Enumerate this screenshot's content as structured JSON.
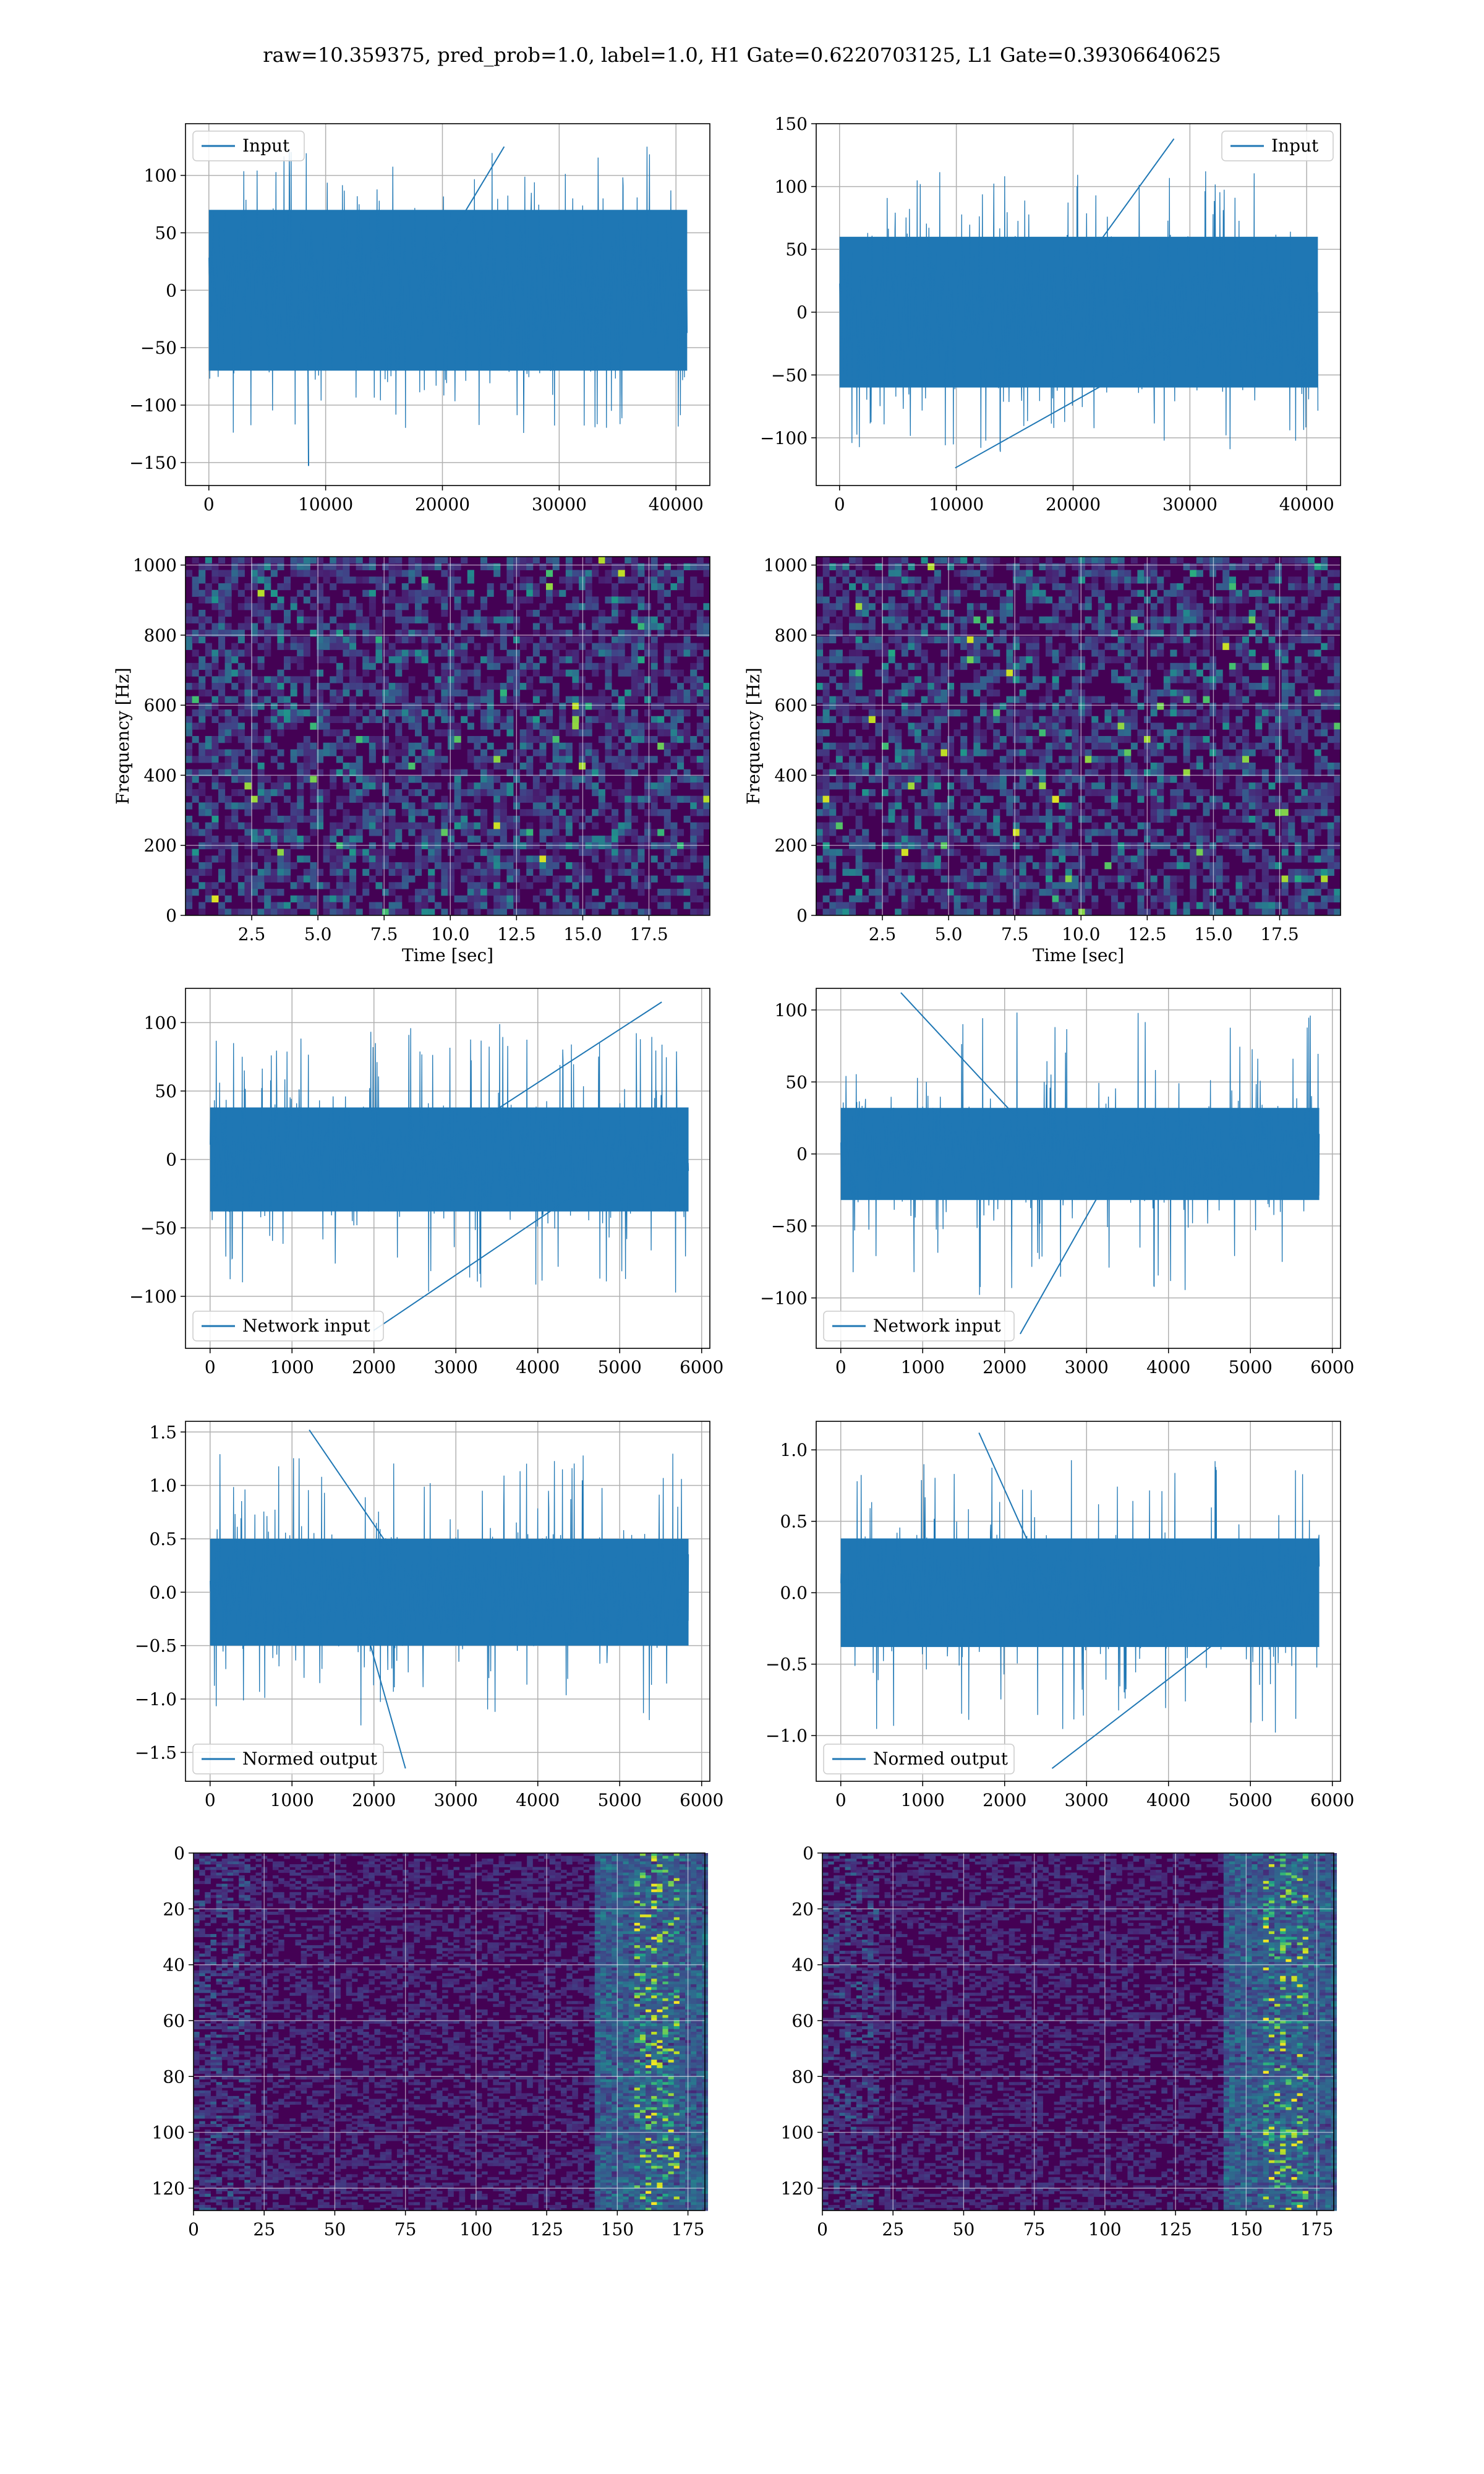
{
  "figure": {
    "suptitle": "raw=10.359375, pred_prob=1.0, label=1.0, H1 Gate=0.6220703125, L1 Gate=0.39306640625"
  },
  "colors": {
    "line": "#1f77b4",
    "grid": "#b0b0b0",
    "viridis_low": "#440154",
    "viridis_mid": "#21918c",
    "viridis_high": "#fde725"
  },
  "chart_data": [
    {
      "id": "input-h1",
      "type": "line",
      "legend": "Input",
      "legend_loc": "upper-left",
      "xlim": [
        -2000,
        42900
      ],
      "ylim": [
        -170,
        145
      ],
      "xticks": [
        0,
        10000,
        20000,
        30000,
        40000
      ],
      "yticks": [
        -150,
        -100,
        -50,
        0,
        50,
        100
      ],
      "series": {
        "x_range": [
          0,
          40960
        ],
        "core_amplitude": 70,
        "peak_max": 125,
        "peak_min": -153
      }
    },
    {
      "id": "input-l1",
      "type": "line",
      "legend": "Input",
      "legend_loc": "upper-right",
      "xlim": [
        -2000,
        42900
      ],
      "ylim": [
        -138,
        150
      ],
      "xticks": [
        0,
        10000,
        20000,
        30000,
        40000
      ],
      "yticks": [
        -100,
        -50,
        0,
        50,
        100,
        150
      ],
      "series": {
        "x_range": [
          0,
          40960
        ],
        "core_amplitude": 60,
        "peak_max": 138,
        "peak_min": -124
      }
    },
    {
      "id": "spectrogram-h1",
      "type": "heatmap",
      "ylabel": "Frequency [Hz]",
      "xlabel": "Time [sec]",
      "xlim": [
        0,
        19.8
      ],
      "ylim": [
        0,
        1024
      ],
      "xticks": [
        2.5,
        5.0,
        7.5,
        10.0,
        12.5,
        15.0,
        17.5
      ],
      "yticks": [
        0,
        200,
        400,
        600,
        800,
        1000
      ]
    },
    {
      "id": "spectrogram-l1",
      "type": "heatmap",
      "ylabel": "Frequency [Hz]",
      "xlabel": "Time [sec]",
      "xlim": [
        0,
        19.8
      ],
      "ylim": [
        0,
        1024
      ],
      "xticks": [
        2.5,
        5.0,
        7.5,
        10.0,
        12.5,
        15.0,
        17.5
      ],
      "yticks": [
        0,
        200,
        400,
        600,
        800,
        1000
      ]
    },
    {
      "id": "network-input-h1",
      "type": "line",
      "legend": "Network input",
      "legend_loc": "lower-left",
      "xlim": [
        -300,
        6100
      ],
      "ylim": [
        -138,
        125
      ],
      "xticks": [
        0,
        1000,
        2000,
        3000,
        4000,
        5000,
        6000
      ],
      "yticks": [
        -100,
        -50,
        0,
        50,
        100
      ],
      "series": {
        "x_range": [
          0,
          5840
        ],
        "core_amplitude": 38,
        "peak_max": 115,
        "peak_min": -125
      }
    },
    {
      "id": "network-input-l1",
      "type": "line",
      "legend": "Network input",
      "legend_loc": "lower-left",
      "xlim": [
        -300,
        6100
      ],
      "ylim": [
        -135,
        115
      ],
      "xticks": [
        0,
        1000,
        2000,
        3000,
        4000,
        5000,
        6000
      ],
      "yticks": [
        -100,
        -50,
        0,
        50,
        100
      ],
      "series": {
        "x_range": [
          0,
          5840
        ],
        "core_amplitude": 32,
        "peak_max": 112,
        "peak_min": -125
      }
    },
    {
      "id": "normed-output-h1",
      "type": "line",
      "legend": "Normed output",
      "legend_loc": "lower-left",
      "xlim": [
        -300,
        6100
      ],
      "ylim": [
        -1.77,
        1.6
      ],
      "xticks": [
        0,
        1000,
        2000,
        3000,
        4000,
        5000,
        6000
      ],
      "yticks": [
        -1.5,
        -1.0,
        -0.5,
        0.0,
        0.5,
        1.0,
        1.5
      ],
      "series": {
        "x_range": [
          0,
          5840
        ],
        "core_amplitude": 0.5,
        "peak_max": 1.52,
        "peak_min": -1.65
      }
    },
    {
      "id": "normed-output-l1",
      "type": "line",
      "legend": "Normed output",
      "legend_loc": "lower-left",
      "xlim": [
        -300,
        6100
      ],
      "ylim": [
        -1.32,
        1.2
      ],
      "xticks": [
        0,
        1000,
        2000,
        3000,
        4000,
        5000,
        6000
      ],
      "yticks": [
        -1.0,
        -0.5,
        0.0,
        0.5,
        1.0
      ],
      "series": {
        "x_range": [
          0,
          5840
        ],
        "core_amplitude": 0.38,
        "peak_max": 1.12,
        "peak_min": -1.23
      }
    },
    {
      "id": "feature-map-h1",
      "type": "heatmap",
      "y_inverted": true,
      "xlim": [
        0,
        181
      ],
      "ylim": [
        128,
        0
      ],
      "xticks": [
        0,
        25,
        50,
        75,
        100,
        125,
        150,
        175
      ],
      "yticks": [
        0,
        20,
        40,
        60,
        80,
        100,
        120
      ]
    },
    {
      "id": "feature-map-l1",
      "type": "heatmap",
      "y_inverted": true,
      "xlim": [
        0,
        181
      ],
      "ylim": [
        128,
        0
      ],
      "xticks": [
        0,
        25,
        50,
        75,
        100,
        125,
        150,
        175
      ],
      "yticks": [
        0,
        20,
        40,
        60,
        80,
        100,
        120
      ]
    }
  ]
}
